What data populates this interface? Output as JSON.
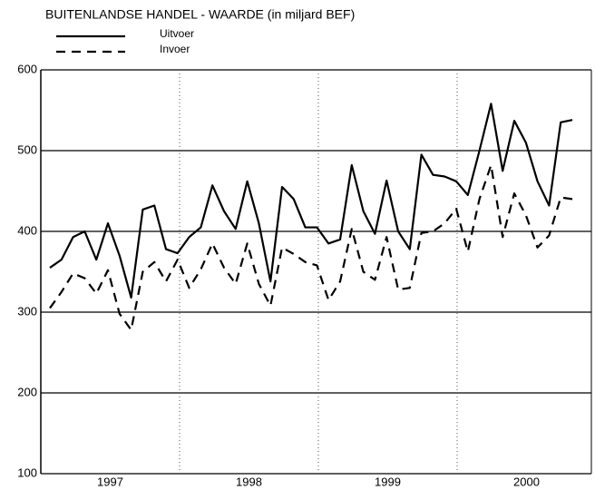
{
  "chart_data": {
    "type": "line",
    "title": "BUITENLANDSE HANDEL - WAARDE (in miljard BEF)",
    "categories": [
      null,
      null,
      null,
      null,
      null,
      null,
      null,
      null,
      null,
      null,
      null,
      null,
      null,
      null,
      null,
      null,
      null,
      null,
      null,
      null,
      null,
      null,
      null,
      null,
      null,
      null,
      null,
      null,
      null,
      null,
      null,
      null,
      null,
      null,
      null,
      null,
      null,
      null,
      null,
      null,
      null,
      null,
      null,
      null,
      null,
      null
    ],
    "year_labels": [
      "1997",
      "1998",
      "1999",
      "2000"
    ],
    "series": [
      {
        "name": "Uitvoer",
        "color": "#000000",
        "style": "solid",
        "values": [
          355,
          365,
          393,
          400,
          365,
          410,
          370,
          318,
          427,
          432,
          378,
          373,
          393,
          405,
          457,
          425,
          403,
          462,
          410,
          338,
          455,
          440,
          405,
          405,
          385,
          390,
          482,
          425,
          397,
          463,
          400,
          378,
          495,
          470,
          468,
          462,
          445,
          500,
          558,
          475,
          537,
          510,
          462,
          432,
          535,
          538
        ]
      },
      {
        "name": "Invoer",
        "color": "#000000",
        "style": "dashed",
        "values": [
          305,
          325,
          348,
          342,
          323,
          352,
          298,
          278,
          350,
          362,
          338,
          365,
          330,
          353,
          385,
          355,
          335,
          385,
          335,
          308,
          380,
          372,
          362,
          358,
          315,
          338,
          403,
          350,
          340,
          393,
          328,
          330,
          398,
          400,
          410,
          428,
          375,
          440,
          482,
          393,
          447,
          420,
          380,
          395,
          442,
          440
        ]
      }
    ],
    "ylim": [
      100,
      600
    ],
    "yticks": [
      100,
      200,
      300,
      400,
      500,
      600
    ],
    "grid": true
  }
}
